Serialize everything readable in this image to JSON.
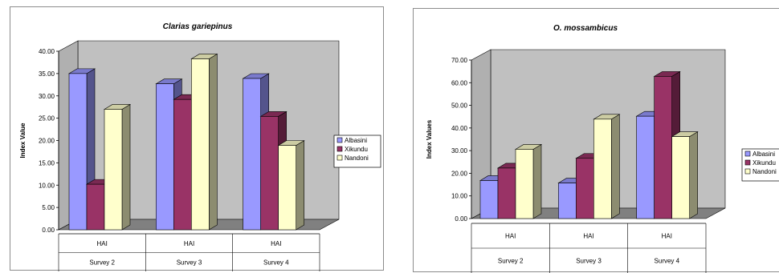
{
  "charts": [
    {
      "chart_data": {
        "type": "bar",
        "title": "Clarias gariepinus",
        "ylabel": "Index Value",
        "ylim": [
          0,
          40
        ],
        "yticks": [
          "0.00",
          "5.00",
          "10.00",
          "15.00",
          "20.00",
          "25.00",
          "30.00",
          "35.00",
          "40.00"
        ],
        "categories": [
          "HAI",
          "HAI",
          "HAI"
        ],
        "groups": [
          "Survey 2",
          "Survey 3",
          "Survey 4"
        ],
        "series": [
          {
            "name": "Albasini",
            "values": [
              35,
              32.7,
              33.9
            ]
          },
          {
            "name": "Xikundu",
            "values": [
              10.2,
              29.2,
              25.4
            ]
          },
          {
            "name": "Nandoni",
            "values": [
              27,
              38.3,
              18.9
            ]
          }
        ],
        "legend": "right"
      }
    },
    {
      "chart_data": {
        "type": "bar",
        "title": "O. mossambicus",
        "ylabel": "Index Values",
        "ylim": [
          0,
          70
        ],
        "yticks": [
          "0.00",
          "10.00",
          "20.00",
          "30.00",
          "40.00",
          "50.00",
          "60.00",
          "70.00"
        ],
        "categories": [
          "HAI",
          "HAI",
          "HAI"
        ],
        "groups": [
          "Survey 2",
          "Survey 3",
          "Survey 4"
        ],
        "series": [
          {
            "name": "Albasini",
            "values": [
              16.8,
              15.7,
              45.2
            ]
          },
          {
            "name": "Xikundu",
            "values": [
              22.3,
              26.6,
              62.8
            ]
          },
          {
            "name": "Nandoni",
            "values": [
              30.6,
              43.9,
              36.2
            ]
          }
        ],
        "legend": "right"
      }
    }
  ],
  "colors": {
    "series": [
      "#9999ff",
      "#993366",
      "#ffffcc"
    ],
    "plot_bg": "#c0c0c0",
    "floor": "#808080"
  }
}
